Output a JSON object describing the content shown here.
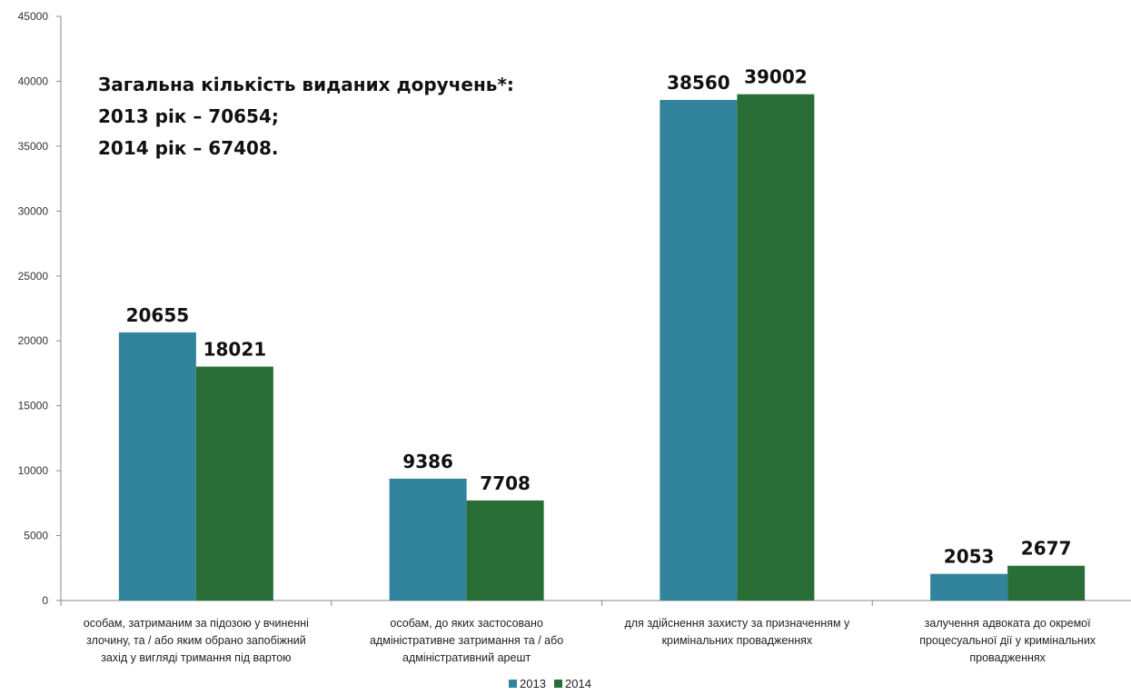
{
  "chart_data": {
    "type": "bar",
    "categories": [
      [
        "особам, затриманим за підозою у вчиненні",
        "злочину, та / або яким обрано запобіжний",
        "захід у вигляді тримання під вартою"
      ],
      [
        "особам, до яких застосовано",
        "адміністративне затримання та / або",
        "адміністративний арешт"
      ],
      [
        "для здійснення захисту за призначенням у",
        "кримінальних провадженнях"
      ],
      [
        "залучення адвоката до окремої",
        "процесуальної дії у кримінальних",
        "провадженнях"
      ]
    ],
    "series": [
      {
        "name": "2013",
        "color": "#31849b",
        "values": [
          20655,
          9386,
          38560,
          2053
        ]
      },
      {
        "name": "2014",
        "color": "#2a6e37",
        "values": [
          18021,
          7708,
          39002,
          2677
        ]
      }
    ],
    "ylim": [
      0,
      45000
    ],
    "yticks": [
      0,
      5000,
      10000,
      15000,
      20000,
      25000,
      30000,
      35000,
      40000,
      45000
    ],
    "annotation": [
      "Загальна кількість виданих доручень*:",
      "2013 рік – 70654;",
      "2014 рік – 67408."
    ],
    "legend_position": "bottom",
    "grid": false
  }
}
